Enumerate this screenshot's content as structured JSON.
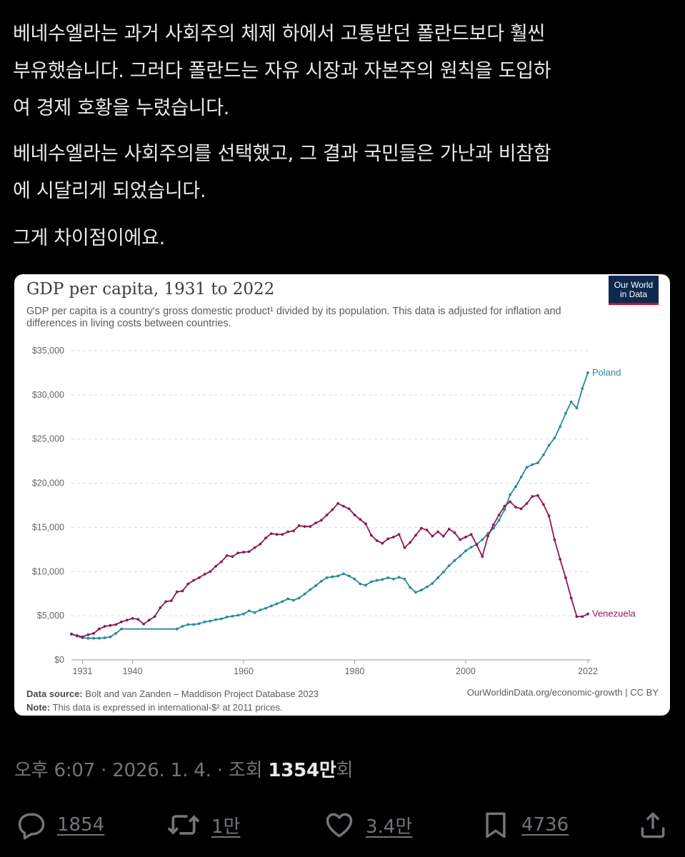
{
  "post": {
    "paragraphs": [
      "베네수엘라는 과거 사회주의 체제 하에서 고통받던 폴란드보다 훨씬\n부유했습니다. 그러다 폴란드는 자유 시장과 자본주의 원칙을 도입하\n여 경제 호황을 누렸습니다.",
      "베네수엘라는 사회주의를 선택했고, 그 결과 국민들은 가난과 비참함\n에 시달리게 되었습니다.",
      "그게 차이점이에요."
    ]
  },
  "chart": {
    "title": "GDP per capita, 1931 to 2022",
    "subtitle": "GDP per capita is a country's gross domestic product¹ divided by its population. This data is adjusted for inflation and differences in living costs between countries.",
    "logo_line1": "Our World",
    "logo_line2": "in Data",
    "source_label": "Data source:",
    "source_text": "Bolt and van Zanden – Maddison Project Database 2023",
    "note_label": "Note:",
    "note_text": "This data is expressed in international-$² at 2011 prices.",
    "credit": "OurWorldinData.org/economic-growth | CC BY"
  },
  "chart_data": {
    "type": "line",
    "title": "GDP per capita, 1931 to 2022",
    "xlabel": "",
    "ylabel": "",
    "xlim": [
      1931,
      2022
    ],
    "ylim": [
      0,
      35000
    ],
    "x_ticks": [
      1931,
      1940,
      1960,
      1980,
      2000,
      2022
    ],
    "y_ticks": [
      0,
      5000,
      10000,
      15000,
      20000,
      25000,
      30000,
      35000
    ],
    "y_tick_labels": [
      "$0",
      "$5,000",
      "$10,000",
      "$15,000",
      "$20,000",
      "$25,000",
      "$30,000",
      "$35,000"
    ],
    "grid": "horizontal dashed",
    "legend": "inline labels at line ends",
    "series": [
      {
        "name": "Poland",
        "color": "#2a8a99",
        "points": [
          [
            1929,
            2950
          ],
          [
            1930,
            2700
          ],
          [
            1931,
            2500
          ],
          [
            1932,
            2450
          ],
          [
            1933,
            2450
          ],
          [
            1934,
            2450
          ],
          [
            1935,
            2500
          ],
          [
            1936,
            2600
          ],
          [
            1937,
            3000
          ],
          [
            1938,
            3500
          ],
          [
            1948,
            3500
          ],
          [
            1949,
            3800
          ],
          [
            1950,
            4000
          ],
          [
            1951,
            4000
          ],
          [
            1952,
            4100
          ],
          [
            1953,
            4300
          ],
          [
            1954,
            4400
          ],
          [
            1955,
            4550
          ],
          [
            1956,
            4650
          ],
          [
            1957,
            4850
          ],
          [
            1958,
            4950
          ],
          [
            1959,
            5050
          ],
          [
            1960,
            5200
          ],
          [
            1961,
            5550
          ],
          [
            1962,
            5350
          ],
          [
            1963,
            5650
          ],
          [
            1964,
            5850
          ],
          [
            1965,
            6100
          ],
          [
            1966,
            6350
          ],
          [
            1967,
            6600
          ],
          [
            1968,
            6900
          ],
          [
            1969,
            6750
          ],
          [
            1970,
            7000
          ],
          [
            1971,
            7450
          ],
          [
            1972,
            7950
          ],
          [
            1973,
            8400
          ],
          [
            1974,
            8900
          ],
          [
            1975,
            9300
          ],
          [
            1976,
            9400
          ],
          [
            1977,
            9500
          ],
          [
            1978,
            9750
          ],
          [
            1979,
            9500
          ],
          [
            1980,
            9150
          ],
          [
            1981,
            8600
          ],
          [
            1982,
            8450
          ],
          [
            1983,
            8850
          ],
          [
            1984,
            9000
          ],
          [
            1985,
            9100
          ],
          [
            1986,
            9300
          ],
          [
            1987,
            9150
          ],
          [
            1988,
            9350
          ],
          [
            1989,
            9150
          ],
          [
            1990,
            8200
          ],
          [
            1991,
            7650
          ],
          [
            1992,
            7900
          ],
          [
            1993,
            8250
          ],
          [
            1994,
            8650
          ],
          [
            1995,
            9300
          ],
          [
            1996,
            9950
          ],
          [
            1997,
            10650
          ],
          [
            1998,
            11250
          ],
          [
            1999,
            11750
          ],
          [
            2000,
            12350
          ],
          [
            2001,
            12750
          ],
          [
            2002,
            13100
          ],
          [
            2003,
            13600
          ],
          [
            2004,
            14300
          ],
          [
            2005,
            14900
          ],
          [
            2006,
            15800
          ],
          [
            2007,
            17000
          ],
          [
            2008,
            18700
          ],
          [
            2009,
            19600
          ],
          [
            2010,
            20700
          ],
          [
            2011,
            21800
          ],
          [
            2012,
            22100
          ],
          [
            2013,
            22300
          ],
          [
            2014,
            23200
          ],
          [
            2015,
            24300
          ],
          [
            2016,
            25100
          ],
          [
            2017,
            26400
          ],
          [
            2018,
            27900
          ],
          [
            2019,
            29200
          ],
          [
            2020,
            28500
          ],
          [
            2021,
            30700
          ],
          [
            2022,
            32500
          ]
        ]
      },
      {
        "name": "Venezuela",
        "color": "#8a1c55",
        "points": [
          [
            1929,
            2900
          ],
          [
            1930,
            2750
          ],
          [
            1931,
            2600
          ],
          [
            1932,
            2850
          ],
          [
            1933,
            3000
          ],
          [
            1934,
            3500
          ],
          [
            1935,
            3800
          ],
          [
            1936,
            3900
          ],
          [
            1937,
            4000
          ],
          [
            1938,
            4300
          ],
          [
            1939,
            4500
          ],
          [
            1940,
            4700
          ],
          [
            1941,
            4600
          ],
          [
            1942,
            4050
          ],
          [
            1943,
            4500
          ],
          [
            1944,
            4900
          ],
          [
            1945,
            5900
          ],
          [
            1946,
            6600
          ],
          [
            1947,
            6700
          ],
          [
            1948,
            7700
          ],
          [
            1949,
            7800
          ],
          [
            1950,
            8600
          ],
          [
            1951,
            9000
          ],
          [
            1952,
            9300
          ],
          [
            1953,
            9700
          ],
          [
            1954,
            10000
          ],
          [
            1955,
            10600
          ],
          [
            1956,
            11100
          ],
          [
            1957,
            11800
          ],
          [
            1958,
            11700
          ],
          [
            1959,
            12100
          ],
          [
            1960,
            12200
          ],
          [
            1961,
            12250
          ],
          [
            1962,
            12700
          ],
          [
            1963,
            13100
          ],
          [
            1964,
            13800
          ],
          [
            1965,
            14300
          ],
          [
            1966,
            14200
          ],
          [
            1967,
            14200
          ],
          [
            1968,
            14500
          ],
          [
            1969,
            14600
          ],
          [
            1970,
            15200
          ],
          [
            1971,
            15100
          ],
          [
            1972,
            15100
          ],
          [
            1973,
            15500
          ],
          [
            1974,
            15800
          ],
          [
            1975,
            16400
          ],
          [
            1976,
            17000
          ],
          [
            1977,
            17700
          ],
          [
            1978,
            17400
          ],
          [
            1979,
            17100
          ],
          [
            1980,
            16400
          ],
          [
            1981,
            15900
          ],
          [
            1982,
            15400
          ],
          [
            1983,
            14100
          ],
          [
            1984,
            13500
          ],
          [
            1985,
            13200
          ],
          [
            1986,
            13700
          ],
          [
            1987,
            13900
          ],
          [
            1988,
            14200
          ],
          [
            1989,
            12700
          ],
          [
            1990,
            13300
          ],
          [
            1991,
            14100
          ],
          [
            1992,
            14900
          ],
          [
            1993,
            14700
          ],
          [
            1994,
            14000
          ],
          [
            1995,
            14500
          ],
          [
            1996,
            14000
          ],
          [
            1997,
            14800
          ],
          [
            1998,
            14400
          ],
          [
            1999,
            13600
          ],
          [
            2000,
            13900
          ],
          [
            2001,
            14200
          ],
          [
            2002,
            13000
          ],
          [
            2003,
            11700
          ],
          [
            2004,
            14000
          ],
          [
            2005,
            15300
          ],
          [
            2006,
            16400
          ],
          [
            2007,
            17400
          ],
          [
            2008,
            17900
          ],
          [
            2009,
            17300
          ],
          [
            2010,
            17100
          ],
          [
            2011,
            17700
          ],
          [
            2012,
            18500
          ],
          [
            2013,
            18600
          ],
          [
            2014,
            17600
          ],
          [
            2015,
            16300
          ],
          [
            2016,
            13600
          ],
          [
            2017,
            11400
          ],
          [
            2018,
            9300
          ],
          [
            2019,
            7000
          ],
          [
            2020,
            4900
          ],
          [
            2021,
            4900
          ],
          [
            2022,
            5200
          ]
        ]
      }
    ]
  },
  "meta": {
    "timestamp": "오후 6:07 · 2026. 1. 4. · 조회 ",
    "views": "1354만",
    "views_suffix": "회"
  },
  "actions": {
    "replies": "1854",
    "reposts": "1만",
    "likes": "3.4만",
    "bookmarks": "4736"
  },
  "icons": {
    "reply": "speech-bubble-icon",
    "repost": "repost-arrows-icon",
    "like": "heart-icon",
    "bookmark": "bookmark-icon",
    "share": "share-upload-icon"
  }
}
